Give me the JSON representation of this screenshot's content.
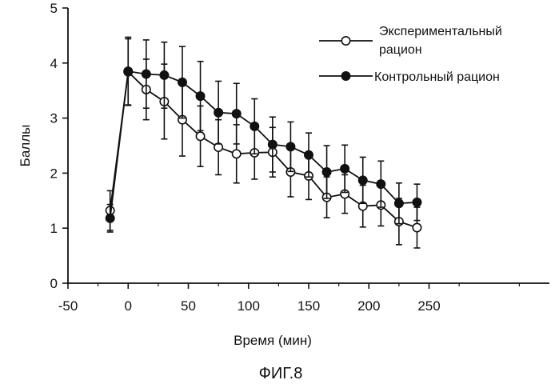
{
  "chart_data": {
    "type": "line",
    "title": "",
    "xlabel": "Время (мин)",
    "ylabel": "Баллы",
    "xlim": [
      -50,
      350
    ],
    "ylim": [
      0,
      5
    ],
    "x_ticks": [
      "-50",
      "0",
      "50",
      "100",
      "150",
      "200",
      "250"
    ],
    "x_tick_values": [
      -50,
      0,
      50,
      100,
      150,
      200,
      250
    ],
    "y_ticks": [
      "0",
      "1",
      "2",
      "3",
      "4",
      "5"
    ],
    "y_tick_values": [
      0,
      1,
      2,
      3,
      4,
      5
    ],
    "grid": false,
    "legend_position": "top-right",
    "x": [
      -15,
      0,
      15,
      30,
      45,
      60,
      75,
      90,
      105,
      120,
      135,
      150,
      165,
      180,
      195,
      210,
      225,
      240
    ],
    "series": [
      {
        "name_lines": [
          "Экспериментальный",
          "рацион"
        ],
        "marker": "open-circle",
        "values": [
          1.32,
          3.84,
          3.52,
          3.3,
          2.97,
          2.67,
          2.47,
          2.35,
          2.37,
          2.38,
          2.02,
          1.95,
          1.56,
          1.62,
          1.4,
          1.42,
          1.12,
          1.01
        ],
        "error": [
          0.36,
          0.6,
          0.55,
          0.68,
          0.66,
          0.55,
          0.5,
          0.53,
          0.48,
          0.45,
          0.45,
          0.43,
          0.37,
          0.35,
          0.38,
          0.38,
          0.42,
          0.37
        ]
      },
      {
        "name_lines": [
          "Контрольный рацион"
        ],
        "marker": "filled-circle",
        "values": [
          1.18,
          3.85,
          3.8,
          3.78,
          3.65,
          3.4,
          3.1,
          3.08,
          2.85,
          2.52,
          2.48,
          2.33,
          2.02,
          2.08,
          1.87,
          1.8,
          1.45,
          1.47
        ],
        "error": [
          0.25,
          0.62,
          0.62,
          0.6,
          0.65,
          0.63,
          0.57,
          0.55,
          0.5,
          0.5,
          0.45,
          0.4,
          0.48,
          0.43,
          0.42,
          0.42,
          0.37,
          0.33
        ]
      }
    ]
  },
  "caption": "ФИГ.8",
  "colors": {
    "ink": "#111111",
    "background": "#ffffff"
  }
}
